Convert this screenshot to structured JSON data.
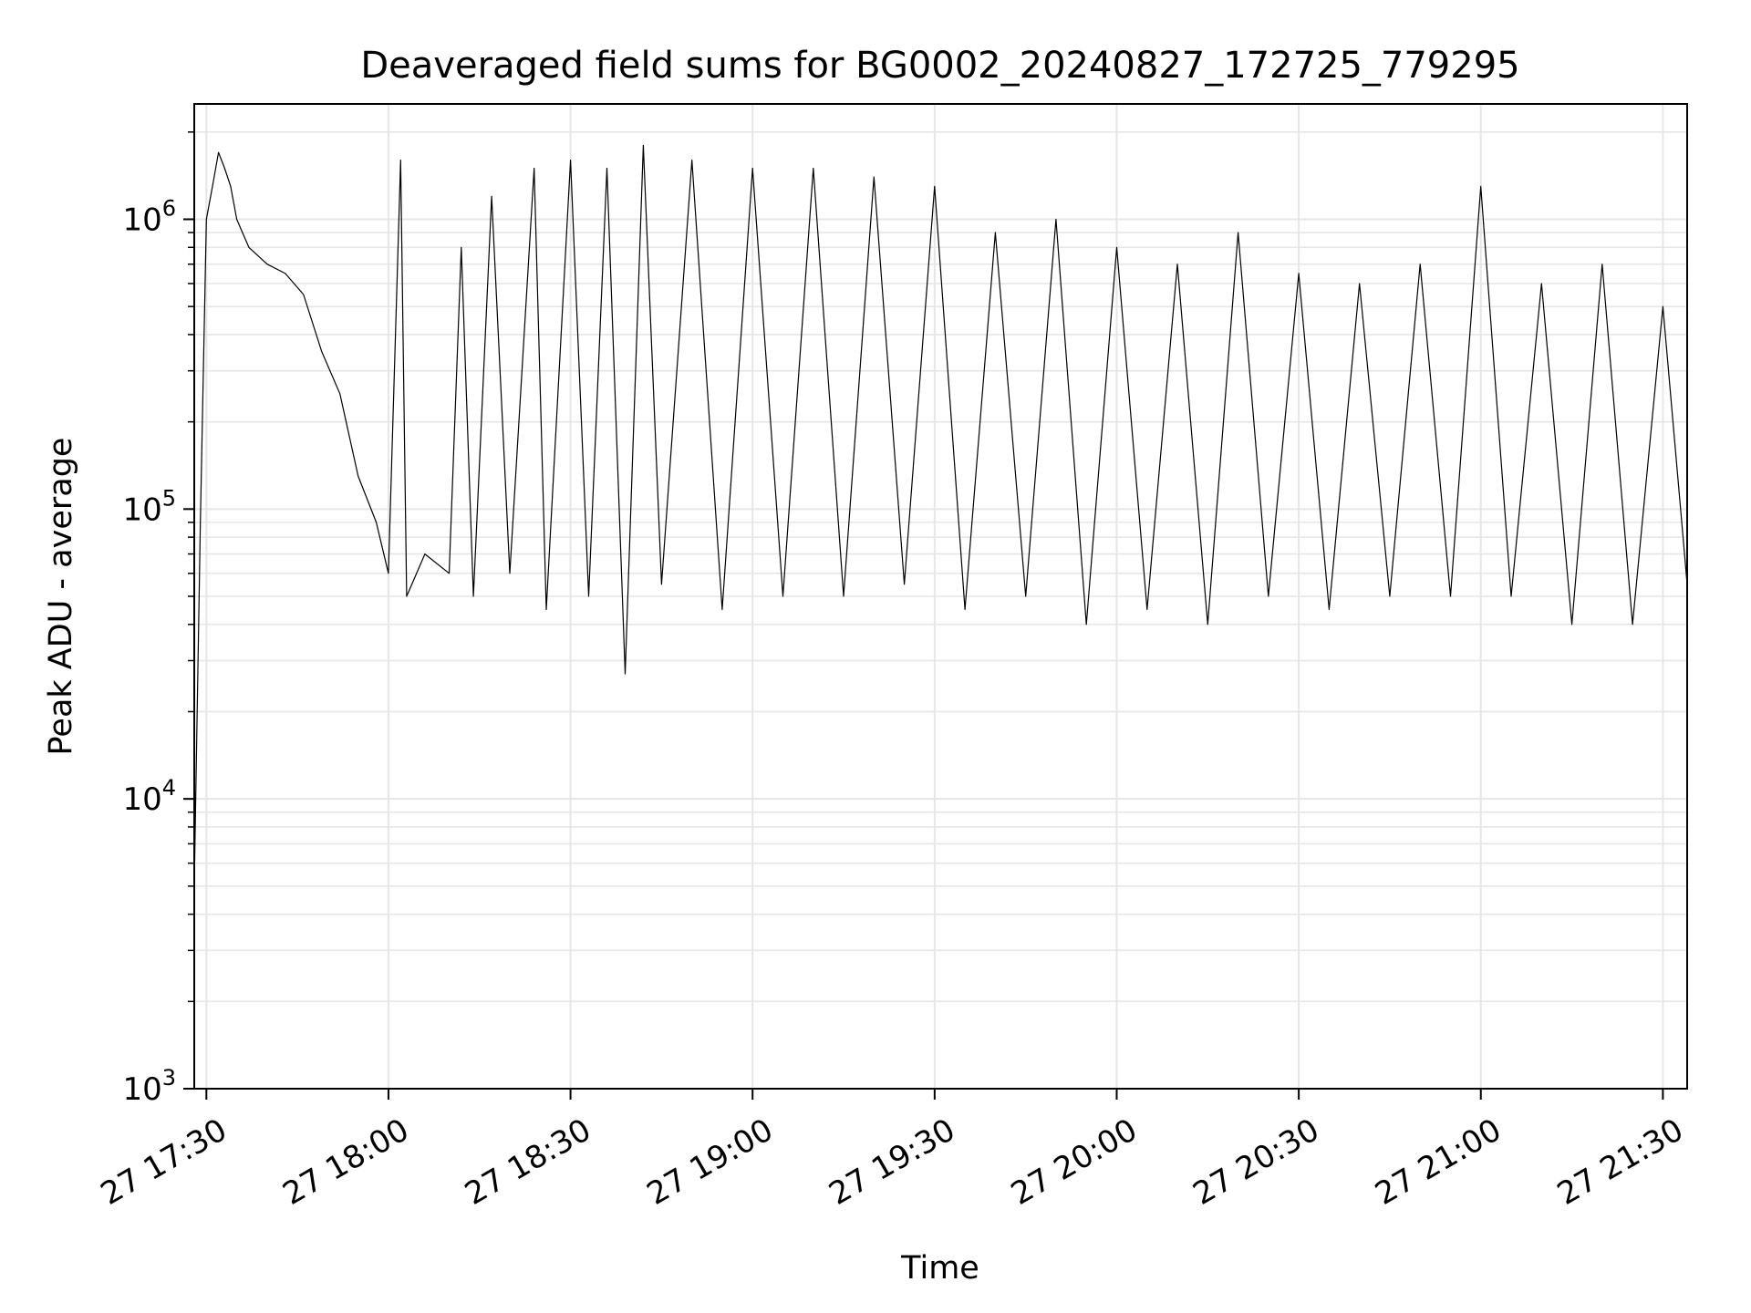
{
  "chart_data": {
    "type": "line",
    "title": "Deaveraged field sums for BG0002_20240827_172725_779295",
    "xlabel": "Time",
    "ylabel": "Peak ADU - average",
    "yscale": "log",
    "ylim": [
      1000,
      2500000
    ],
    "xlim": [
      "2024-08-27 17:28",
      "2024-08-27 21:34"
    ],
    "x_ticks": [
      {
        "value": "2024-08-27 17:30",
        "label": "27 17:30"
      },
      {
        "value": "2024-08-27 18:00",
        "label": "27 18:00"
      },
      {
        "value": "2024-08-27 18:30",
        "label": "27 18:30"
      },
      {
        "value": "2024-08-27 19:00",
        "label": "27 19:00"
      },
      {
        "value": "2024-08-27 19:30",
        "label": "27 19:30"
      },
      {
        "value": "2024-08-27 20:00",
        "label": "27 20:00"
      },
      {
        "value": "2024-08-27 20:30",
        "label": "27 20:30"
      },
      {
        "value": "2024-08-27 21:00",
        "label": "27 21:00"
      },
      {
        "value": "2024-08-27 21:30",
        "label": "27 21:30"
      }
    ],
    "y_ticks": [
      {
        "value": 1000,
        "base": "10",
        "exp": "3"
      },
      {
        "value": 10000,
        "base": "10",
        "exp": "4"
      },
      {
        "value": 100000,
        "base": "10",
        "exp": "5"
      },
      {
        "value": 1000000,
        "base": "10",
        "exp": "6"
      }
    ],
    "grid": "major and minor",
    "line_color": "#000000",
    "grid_color": "#e6e6e6",
    "series": [
      {
        "points": [
          [
            "2024-08-27 17:28",
            5000
          ],
          [
            "2024-08-27 17:29",
            90000
          ],
          [
            "2024-08-27 17:30",
            1000000
          ],
          [
            "2024-08-27 17:31",
            1300000
          ],
          [
            "2024-08-27 17:32",
            1700000
          ],
          [
            "2024-08-27 17:33",
            1500000
          ],
          [
            "2024-08-27 17:34",
            1300000
          ],
          [
            "2024-08-27 17:35",
            1000000
          ],
          [
            "2024-08-27 17:37",
            800000
          ],
          [
            "2024-08-27 17:40",
            700000
          ],
          [
            "2024-08-27 17:43",
            650000
          ],
          [
            "2024-08-27 17:46",
            550000
          ],
          [
            "2024-08-27 17:49",
            350000
          ],
          [
            "2024-08-27 17:52",
            250000
          ],
          [
            "2024-08-27 17:55",
            130000
          ],
          [
            "2024-08-27 17:58",
            90000
          ],
          [
            "2024-08-27 18:00",
            60000
          ],
          [
            "2024-08-27 18:02",
            1600000
          ],
          [
            "2024-08-27 18:03",
            50000
          ],
          [
            "2024-08-27 18:06",
            70000
          ],
          [
            "2024-08-27 18:10",
            60000
          ],
          [
            "2024-08-27 18:12",
            800000
          ],
          [
            "2024-08-27 18:14",
            50000
          ],
          [
            "2024-08-27 18:17",
            1200000
          ],
          [
            "2024-08-27 18:20",
            60000
          ],
          [
            "2024-08-27 18:24",
            1500000
          ],
          [
            "2024-08-27 18:26",
            45000
          ],
          [
            "2024-08-27 18:30",
            1600000
          ],
          [
            "2024-08-27 18:33",
            50000
          ],
          [
            "2024-08-27 18:36",
            1500000
          ],
          [
            "2024-08-27 18:39",
            27000
          ],
          [
            "2024-08-27 18:42",
            1800000
          ],
          [
            "2024-08-27 18:45",
            55000
          ],
          [
            "2024-08-27 18:50",
            1600000
          ],
          [
            "2024-08-27 18:55",
            45000
          ],
          [
            "2024-08-27 19:00",
            1500000
          ],
          [
            "2024-08-27 19:05",
            50000
          ],
          [
            "2024-08-27 19:10",
            1500000
          ],
          [
            "2024-08-27 19:15",
            50000
          ],
          [
            "2024-08-27 19:20",
            1400000
          ],
          [
            "2024-08-27 19:25",
            55000
          ],
          [
            "2024-08-27 19:30",
            1300000
          ],
          [
            "2024-08-27 19:35",
            45000
          ],
          [
            "2024-08-27 19:40",
            900000
          ],
          [
            "2024-08-27 19:45",
            50000
          ],
          [
            "2024-08-27 19:50",
            1000000
          ],
          [
            "2024-08-27 19:55",
            40000
          ],
          [
            "2024-08-27 20:00",
            800000
          ],
          [
            "2024-08-27 20:05",
            45000
          ],
          [
            "2024-08-27 20:10",
            700000
          ],
          [
            "2024-08-27 20:15",
            40000
          ],
          [
            "2024-08-27 20:20",
            900000
          ],
          [
            "2024-08-27 20:25",
            50000
          ],
          [
            "2024-08-27 20:30",
            650000
          ],
          [
            "2024-08-27 20:35",
            45000
          ],
          [
            "2024-08-27 20:40",
            600000
          ],
          [
            "2024-08-27 20:45",
            50000
          ],
          [
            "2024-08-27 20:50",
            700000
          ],
          [
            "2024-08-27 20:55",
            50000
          ],
          [
            "2024-08-27 21:00",
            1300000
          ],
          [
            "2024-08-27 21:05",
            50000
          ],
          [
            "2024-08-27 21:10",
            600000
          ],
          [
            "2024-08-27 21:15",
            40000
          ],
          [
            "2024-08-27 21:20",
            700000
          ],
          [
            "2024-08-27 21:25",
            40000
          ],
          [
            "2024-08-27 21:30",
            500000
          ],
          [
            "2024-08-27 21:34",
            55000
          ]
        ]
      }
    ]
  }
}
